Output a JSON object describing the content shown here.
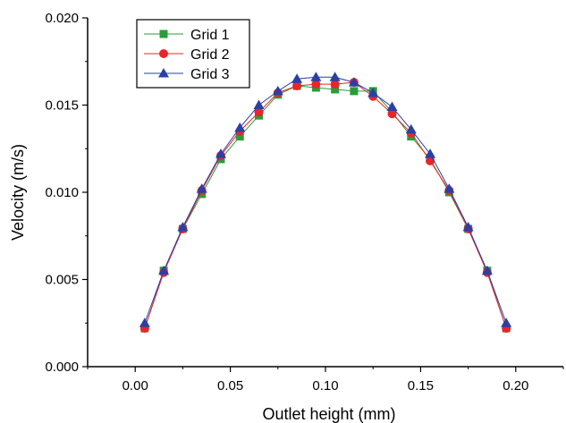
{
  "chart_data": {
    "type": "line",
    "title": "",
    "xlabel": "Outlet height (mm)",
    "ylabel": "Velocity (m/s)",
    "xlim": [
      -0.025,
      0.225
    ],
    "ylim": [
      0.0,
      0.02
    ],
    "xticks": [
      0.0,
      0.05,
      0.1,
      0.15,
      0.2
    ],
    "xtick_labels": [
      "0.00",
      "0.05",
      "0.10",
      "0.15",
      "0.20"
    ],
    "yticks": [
      0.0,
      0.005,
      0.01,
      0.015,
      0.02
    ],
    "ytick_labels": [
      "0.000",
      "0.005",
      "0.010",
      "0.015",
      "0.020"
    ],
    "grid": false,
    "legend_position": "top-left",
    "x": [
      0.005,
      0.015,
      0.025,
      0.035,
      0.045,
      0.055,
      0.065,
      0.075,
      0.085,
      0.095,
      0.105,
      0.115,
      0.125,
      0.135,
      0.145,
      0.155,
      0.165,
      0.175,
      0.185,
      0.195
    ],
    "series": [
      {
        "name": "Grid 1",
        "color": "#2a9d3a",
        "marker": "square",
        "values": [
          0.0022,
          0.0055,
          0.0079,
          0.0099,
          0.0119,
          0.0132,
          0.0144,
          0.0156,
          0.0161,
          0.016,
          0.0159,
          0.0158,
          0.0158,
          0.0146,
          0.0132,
          0.0119,
          0.01,
          0.0079,
          0.0055,
          0.0022
        ]
      },
      {
        "name": "Grid 2",
        "color": "#e8262a",
        "marker": "circle",
        "values": [
          0.0022,
          0.0054,
          0.0079,
          0.0101,
          0.0121,
          0.0135,
          0.0146,
          0.0157,
          0.0161,
          0.0162,
          0.0162,
          0.0163,
          0.0155,
          0.0145,
          0.0134,
          0.0118,
          0.0101,
          0.0079,
          0.0054,
          0.0022
        ]
      },
      {
        "name": "Grid 3",
        "color": "#2b3fa6",
        "marker": "triangle",
        "values": [
          0.0025,
          0.0055,
          0.008,
          0.0102,
          0.0122,
          0.0137,
          0.015,
          0.0158,
          0.0165,
          0.0166,
          0.0166,
          0.0163,
          0.0157,
          0.0149,
          0.0136,
          0.0122,
          0.0102,
          0.008,
          0.0055,
          0.0025
        ]
      }
    ]
  }
}
